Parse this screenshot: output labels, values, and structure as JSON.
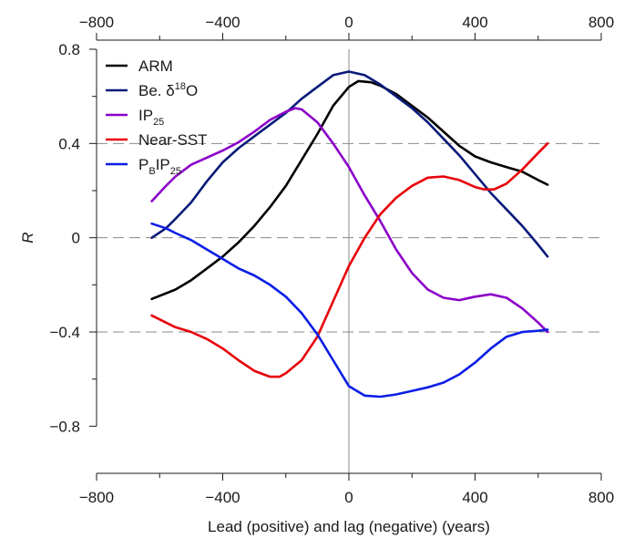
{
  "chart_data": {
    "type": "line",
    "title": "",
    "xlabel": "Lead (positive) and lag (negative) (years)",
    "ylabel": "R",
    "xlim": [
      -800,
      800
    ],
    "ylim": [
      -1.0,
      0.8
    ],
    "x_ticks": [
      -800,
      -400,
      0,
      400,
      800
    ],
    "x_tick_labels": [
      "−800",
      "−400",
      "0",
      "400",
      "800"
    ],
    "y_ticks": [
      0.8,
      0.4,
      0,
      -0.4,
      -0.8
    ],
    "y_tick_labels": [
      "0.8",
      "0.4",
      "0",
      "−0.4",
      "−0.8"
    ],
    "top_axis_ticks": [
      -800,
      -400,
      0,
      400,
      800
    ],
    "top_axis_tick_labels": [
      "−800",
      "−400",
      "0",
      "400",
      "800"
    ],
    "reference_lines": {
      "horizontal_dashed": [
        0.4,
        0,
        -0.4
      ],
      "vertical_solid": [
        0
      ]
    },
    "legend_position": "top-left",
    "series": [
      {
        "name": "ARM",
        "name_main": "ARM",
        "name_sup": "",
        "name_after": "",
        "name_sub": "",
        "color": "#000000",
        "points": [
          [
            -625,
            -0.26
          ],
          [
            -550,
            -0.22
          ],
          [
            -500,
            -0.18
          ],
          [
            -450,
            -0.13
          ],
          [
            -400,
            -0.08
          ],
          [
            -350,
            -0.02
          ],
          [
            -300,
            0.05
          ],
          [
            -250,
            0.13
          ],
          [
            -200,
            0.22
          ],
          [
            -150,
            0.33
          ],
          [
            -100,
            0.44
          ],
          [
            -50,
            0.56
          ],
          [
            0,
            0.64
          ],
          [
            30,
            0.665
          ],
          [
            70,
            0.66
          ],
          [
            100,
            0.645
          ],
          [
            150,
            0.61
          ],
          [
            200,
            0.56
          ],
          [
            250,
            0.51
          ],
          [
            300,
            0.45
          ],
          [
            350,
            0.39
          ],
          [
            400,
            0.345
          ],
          [
            450,
            0.32
          ],
          [
            500,
            0.3
          ],
          [
            550,
            0.28
          ],
          [
            600,
            0.245
          ],
          [
            630,
            0.225
          ]
        ]
      },
      {
        "name": "Be. δ¹⁸O",
        "name_main": "Be. δ",
        "name_sup": "18",
        "name_after": "O",
        "name_sub": "",
        "color": "#0a1a7a",
        "points": [
          [
            -625,
            0.0
          ],
          [
            -580,
            0.04
          ],
          [
            -550,
            0.08
          ],
          [
            -500,
            0.15
          ],
          [
            -450,
            0.24
          ],
          [
            -400,
            0.32
          ],
          [
            -350,
            0.38
          ],
          [
            -300,
            0.43
          ],
          [
            -250,
            0.48
          ],
          [
            -200,
            0.53
          ],
          [
            -150,
            0.59
          ],
          [
            -100,
            0.64
          ],
          [
            -50,
            0.69
          ],
          [
            0,
            0.705
          ],
          [
            50,
            0.69
          ],
          [
            100,
            0.65
          ],
          [
            150,
            0.6
          ],
          [
            200,
            0.55
          ],
          [
            250,
            0.49
          ],
          [
            300,
            0.42
          ],
          [
            350,
            0.35
          ],
          [
            400,
            0.27
          ],
          [
            450,
            0.19
          ],
          [
            500,
            0.12
          ],
          [
            550,
            0.05
          ],
          [
            600,
            -0.03
          ],
          [
            630,
            -0.08
          ]
        ]
      },
      {
        "name": "IP25",
        "name_main": "IP",
        "name_sup": "",
        "name_after": "",
        "name_sub": "25",
        "color": "#8b00c9",
        "points": [
          [
            -625,
            0.155
          ],
          [
            -580,
            0.22
          ],
          [
            -550,
            0.26
          ],
          [
            -500,
            0.31
          ],
          [
            -450,
            0.34
          ],
          [
            -400,
            0.37
          ],
          [
            -350,
            0.405
          ],
          [
            -300,
            0.45
          ],
          [
            -250,
            0.5
          ],
          [
            -200,
            0.535
          ],
          [
            -170,
            0.55
          ],
          [
            -150,
            0.545
          ],
          [
            -100,
            0.49
          ],
          [
            -50,
            0.4
          ],
          [
            0,
            0.3
          ],
          [
            50,
            0.18
          ],
          [
            100,
            0.07
          ],
          [
            150,
            -0.05
          ],
          [
            200,
            -0.15
          ],
          [
            250,
            -0.22
          ],
          [
            300,
            -0.255
          ],
          [
            350,
            -0.265
          ],
          [
            400,
            -0.25
          ],
          [
            450,
            -0.24
          ],
          [
            500,
            -0.255
          ],
          [
            550,
            -0.3
          ],
          [
            600,
            -0.36
          ],
          [
            630,
            -0.4
          ]
        ]
      },
      {
        "name": "Near-SST",
        "name_main": "Near-SST",
        "name_sup": "",
        "name_after": "",
        "name_sub": "",
        "color": "#e8000b",
        "points": [
          [
            -625,
            -0.33
          ],
          [
            -580,
            -0.36
          ],
          [
            -550,
            -0.38
          ],
          [
            -500,
            -0.4
          ],
          [
            -450,
            -0.43
          ],
          [
            -400,
            -0.47
          ],
          [
            -350,
            -0.52
          ],
          [
            -300,
            -0.565
          ],
          [
            -250,
            -0.59
          ],
          [
            -220,
            -0.59
          ],
          [
            -200,
            -0.575
          ],
          [
            -150,
            -0.52
          ],
          [
            -100,
            -0.42
          ],
          [
            -50,
            -0.27
          ],
          [
            0,
            -0.12
          ],
          [
            50,
            0.0
          ],
          [
            100,
            0.1
          ],
          [
            150,
            0.17
          ],
          [
            200,
            0.22
          ],
          [
            250,
            0.255
          ],
          [
            300,
            0.26
          ],
          [
            350,
            0.245
          ],
          [
            400,
            0.215
          ],
          [
            430,
            0.205
          ],
          [
            460,
            0.205
          ],
          [
            500,
            0.23
          ],
          [
            550,
            0.29
          ],
          [
            600,
            0.36
          ],
          [
            630,
            0.4
          ]
        ]
      },
      {
        "name": "PBIP25",
        "name_main": "P",
        "name_sup": "",
        "name_after": "",
        "name_sub": "B",
        "name_main2": "IP",
        "name_sub2": "25",
        "color": "#0b1ee6",
        "points": [
          [
            -625,
            0.06
          ],
          [
            -580,
            0.04
          ],
          [
            -550,
            0.02
          ],
          [
            -500,
            -0.01
          ],
          [
            -450,
            -0.05
          ],
          [
            -400,
            -0.09
          ],
          [
            -350,
            -0.13
          ],
          [
            -300,
            -0.16
          ],
          [
            -250,
            -0.2
          ],
          [
            -200,
            -0.25
          ],
          [
            -150,
            -0.32
          ],
          [
            -100,
            -0.41
          ],
          [
            -50,
            -0.52
          ],
          [
            0,
            -0.63
          ],
          [
            50,
            -0.67
          ],
          [
            100,
            -0.675
          ],
          [
            150,
            -0.665
          ],
          [
            200,
            -0.65
          ],
          [
            250,
            -0.635
          ],
          [
            300,
            -0.615
          ],
          [
            350,
            -0.58
          ],
          [
            400,
            -0.53
          ],
          [
            450,
            -0.47
          ],
          [
            500,
            -0.42
          ],
          [
            550,
            -0.4
          ],
          [
            600,
            -0.395
          ],
          [
            630,
            -0.39
          ]
        ]
      }
    ]
  }
}
